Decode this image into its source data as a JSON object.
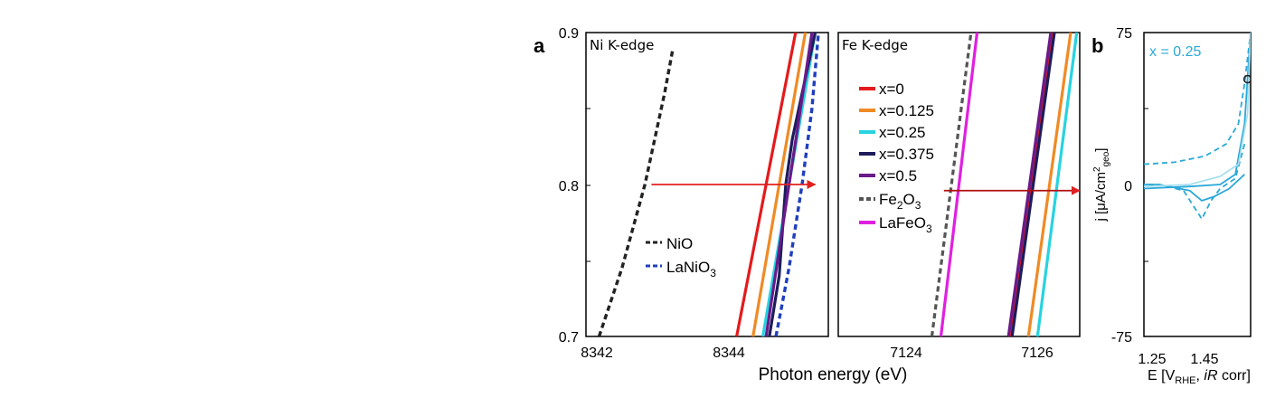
{
  "chart_data": [
    {
      "panel": "a",
      "type": "line",
      "subpanel": "Ni K-edge",
      "title": "Ni K-edge",
      "xlabel": "Photon energy (eV)",
      "ylabel": "",
      "xlim": [
        8342,
        8345.7
      ],
      "ylim": [
        0.7,
        0.9
      ],
      "xticks": [
        "8342",
        "8344"
      ],
      "yticks": [
        "0.7",
        "0.8",
        "0.9"
      ],
      "arrow": {
        "from": [
          8343,
          0.8
        ],
        "to": [
          8345.5,
          0.8
        ],
        "color": "#e02020"
      },
      "series": [
        {
          "name": "NiO",
          "color": "#222222",
          "dash": "dash",
          "x": [
            8342.2,
            8342.55,
            8342.9,
            8343.2,
            8343.33
          ],
          "y": [
            0.7,
            0.745,
            0.8,
            0.86,
            0.89
          ],
          "legend": true
        },
        {
          "name": "LaNiO3",
          "color": "#1f3fbf",
          "dash": "dash",
          "x": [
            8344.9,
            8345.1,
            8345.3,
            8345.45,
            8345.55
          ],
          "y": [
            0.7,
            0.745,
            0.8,
            0.85,
            0.9
          ],
          "legend": true
        },
        {
          "name": "x=0",
          "color": "#e41a1c",
          "dash": "solid",
          "x": [
            8344.3,
            8345.2
          ],
          "y": [
            0.7,
            0.9
          ]
        },
        {
          "name": "x=0.125",
          "color": "#f08a24",
          "dash": "solid",
          "x": [
            8344.55,
            8345.35
          ],
          "y": [
            0.7,
            0.9
          ]
        },
        {
          "name": "x=0.25",
          "color": "#27d3e0",
          "dash": "solid",
          "x": [
            8344.7,
            8345.5
          ],
          "y": [
            0.7,
            0.9
          ]
        },
        {
          "name": "x=0.375",
          "color": "#1c1c5c",
          "dash": "solid",
          "x": [
            8344.8,
            8344.95,
            8345.05,
            8345.15,
            8345.3,
            8345.5
          ],
          "y": [
            0.7,
            0.74,
            0.8,
            0.83,
            0.86,
            0.9
          ]
        },
        {
          "name": "x=0.5",
          "color": "#6a1a8a",
          "dash": "solid",
          "x": [
            8344.75,
            8345.45
          ],
          "y": [
            0.7,
            0.9
          ]
        }
      ]
    },
    {
      "panel": "a",
      "type": "line",
      "subpanel": "Fe K-edge",
      "title": "Fe K-edge",
      "xlim": [
        7123,
        7127
      ],
      "ylim": [
        0.7,
        0.9
      ],
      "xticks": [
        "7124",
        "7126"
      ],
      "arrow": {
        "from": [
          7124.75,
          0.796
        ],
        "to": [
          7127,
          0.796
        ],
        "color": "#b01010"
      },
      "legend": [
        "x=0",
        "x=0.125",
        "x=0.25",
        "x=0.375",
        "x=0.5",
        "Fe2O3",
        "LaFeO3"
      ],
      "series": [
        {
          "name": "x=0",
          "color": "#e41a1c",
          "dash": "solid",
          "x": [
            7125.85,
            7126.55
          ],
          "y": [
            0.7,
            0.9
          ]
        },
        {
          "name": "x=0.125",
          "color": "#f08a24",
          "dash": "solid",
          "x": [
            7126.15,
            7126.85
          ],
          "y": [
            0.7,
            0.9
          ]
        },
        {
          "name": "x=0.25",
          "color": "#27d3e0",
          "dash": "solid",
          "x": [
            7126.3,
            7126.95
          ],
          "y": [
            0.7,
            0.9
          ]
        },
        {
          "name": "x=0.375",
          "color": "#1c1c5c",
          "dash": "solid",
          "x": [
            7125.88,
            7126.58
          ],
          "y": [
            0.7,
            0.9
          ]
        },
        {
          "name": "x=0.5",
          "color": "#6a1a8a",
          "dash": "solid",
          "x": [
            7125.82,
            7126.52
          ],
          "y": [
            0.7,
            0.9
          ]
        },
        {
          "name": "Fe2O3",
          "color": "#555555",
          "dash": "dash",
          "x": [
            7124.55,
            7125.2
          ],
          "y": [
            0.7,
            0.9
          ]
        },
        {
          "name": "LaFeO3",
          "color": "#e020e0",
          "dash": "solid",
          "x": [
            7124.7,
            7125.3
          ],
          "y": [
            0.7,
            0.9
          ]
        }
      ]
    },
    {
      "panel": "b",
      "type": "line",
      "annotation": "x = 0.25",
      "xlabel_main": "E [V",
      "xlabel_sub": "RHE",
      "xlabel_rest": ", ",
      "xlabel_italic": "iR",
      "xlabel_end": " corr]",
      "ylabel_main": "j [μA/cm",
      "ylabel_sup": "2",
      "ylabel_sub": "geo",
      "ylabel_end": "]",
      "xlim": [
        1.25,
        1.6
      ],
      "ylim": [
        -75,
        75
      ],
      "xticks": [
        "1.25",
        "1.45"
      ],
      "yticks": [
        "75",
        "0",
        "-75"
      ],
      "series": [
        {
          "name": "cycle-dashed",
          "color": "#2aa8d8",
          "dash": "dash",
          "x": [
            1.25,
            1.35,
            1.45,
            1.52,
            1.56,
            1.58,
            1.6
          ],
          "y": [
            10,
            11,
            14,
            20,
            30,
            50,
            75
          ]
        },
        {
          "name": "cycle-dashed-return",
          "color": "#2aa8d8",
          "dash": "dash",
          "x": [
            1.58,
            1.55,
            1.5,
            1.47,
            1.44,
            1.41,
            1.38,
            1.3,
            1.25
          ],
          "y": [
            20,
            3,
            -2,
            -8,
            -17,
            -10,
            -3,
            0,
            0
          ]
        },
        {
          "name": "cycle-solid",
          "color": "#2aa8d8",
          "dash": "solid",
          "x": [
            1.25,
            1.4,
            1.5,
            1.55,
            1.58,
            1.6
          ],
          "y": [
            -2,
            -1,
            0,
            5,
            30,
            75
          ]
        },
        {
          "name": "cycle-solid-return",
          "color": "#2aa8d8",
          "dash": "solid",
          "x": [
            1.58,
            1.53,
            1.48,
            1.44,
            1.4,
            1.3,
            1.25
          ],
          "y": [
            5,
            -2,
            -6,
            -8,
            -3,
            0,
            0
          ]
        },
        {
          "name": "cycle-light",
          "color": "#a8dff0",
          "dash": "solid",
          "x": [
            1.25,
            1.4,
            1.5,
            1.56,
            1.59,
            1.6
          ],
          "y": [
            -1,
            0,
            4,
            10,
            35,
            75
          ]
        }
      ],
      "marker": {
        "x": 1.59,
        "y": 52,
        "shape": "open-circle"
      }
    }
  ],
  "labels": {
    "panel_a": "a",
    "panel_b": "b",
    "legend_fe_subscript_2": "2",
    "legend_fe_subscript_3": "3",
    "legend_la_ni_main": "LaNiO",
    "legend_la_ni_sub": "3",
    "legend_fe2o3_a": "Fe",
    "legend_fe2o3_b": "O",
    "legend_lafeo3": "LaFeO"
  }
}
